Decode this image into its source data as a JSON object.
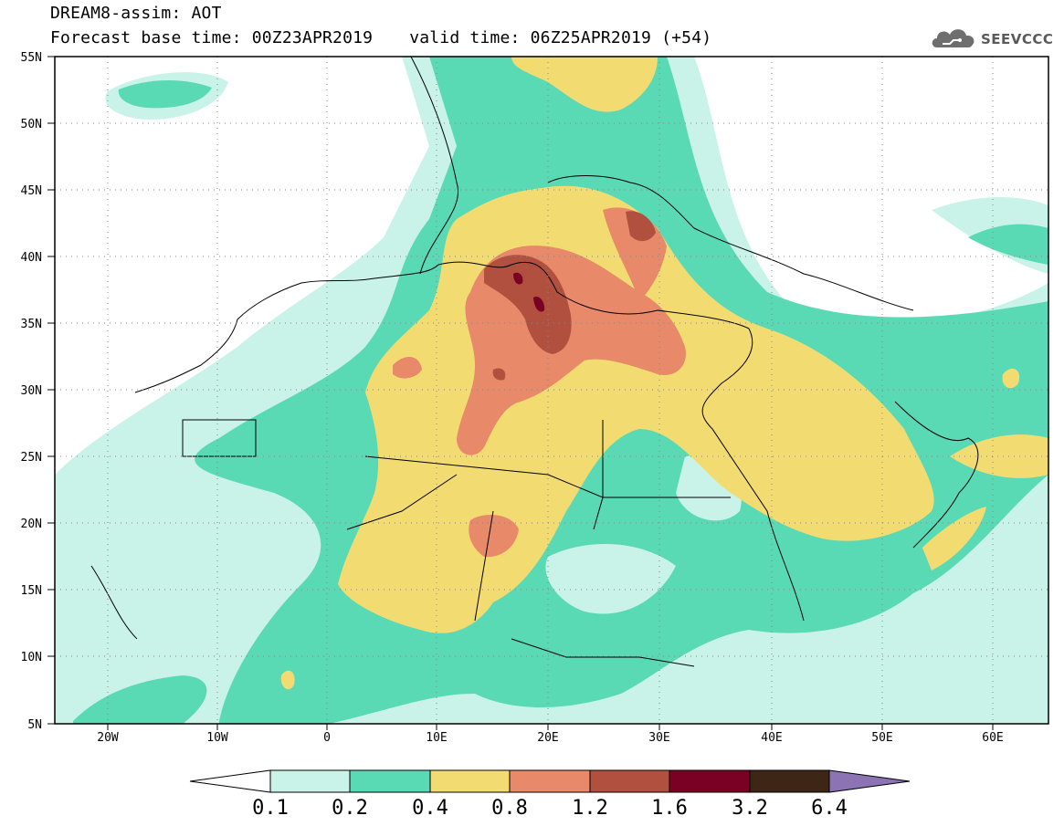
{
  "header": {
    "title": "DREAM8-assim: AOT",
    "base_time": "Forecast base time: 00Z23APR2019",
    "valid_time": "valid time: 06Z25APR2019 (+54)"
  },
  "logo": {
    "text": "SEEVCCC",
    "icon": "cloud-icon"
  },
  "map": {
    "lon_range": [
      -25,
      65
    ],
    "lat_range": [
      5,
      55
    ],
    "lat_ticks": [
      "55N",
      "50N",
      "45N",
      "40N",
      "35N",
      "30N",
      "25N",
      "20N",
      "15N",
      "10N",
      "5N"
    ],
    "lon_ticks": [
      "20W",
      "10W",
      "0",
      "10E",
      "20E",
      "30E",
      "40E",
      "50E",
      "60E"
    ],
    "grid": "dotted"
  },
  "colorbar": {
    "labels": [
      "0.1",
      "0.2",
      "0.4",
      "0.8",
      "1.2",
      "1.6",
      "3.2",
      "6.4"
    ],
    "colors": [
      "#c9f2e9",
      "#5ad9b5",
      "#f2dc72",
      "#e8896a",
      "#b1503e",
      "#7a0024",
      "#3d2616",
      "#8b73b4"
    ]
  }
}
